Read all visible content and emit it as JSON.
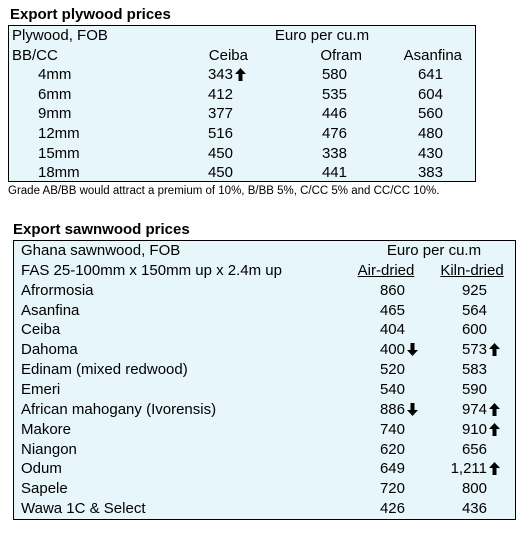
{
  "plywood": {
    "title": "Export plywood prices",
    "header": {
      "label1": "Plywood, FOB",
      "unit": "Euro per cu.m",
      "label2": "BB/CC",
      "columns": [
        "Ceiba",
        "Ofram",
        "Asanfina"
      ]
    },
    "rows": [
      {
        "label": "4mm",
        "values": [
          "343",
          "580",
          "641"
        ]
      },
      {
        "label": "6mm",
        "values": [
          "412",
          "535",
          "604"
        ]
      },
      {
        "label": "9mm",
        "values": [
          "377",
          "446",
          "560"
        ]
      },
      {
        "label": "12mm",
        "values": [
          "516",
          "476",
          "480"
        ]
      },
      {
        "label": "15mm",
        "values": [
          "450",
          "338",
          "430"
        ]
      },
      {
        "label": "18mm",
        "values": [
          "450",
          "441",
          "383"
        ]
      }
    ],
    "note": "Grade AB/BB would attract a premium of 10%, B/BB 5%, C/CC 5% and CC/CC 10%."
  },
  "sawnwood": {
    "title": "Export sawnwood prices",
    "header": {
      "label1": "Ghana sawnwood, FOB",
      "unit": "Euro per cu.m",
      "label2": "FAS 25-100mm x 150mm up x 2.4m up",
      "columns": [
        "Air-dried",
        "Kiln-dried"
      ]
    },
    "rows": [
      {
        "label": "Afrormosia",
        "values": [
          "860",
          "925"
        ]
      },
      {
        "label": "Asanfina",
        "values": [
          "465",
          "564"
        ]
      },
      {
        "label": "Ceiba",
        "values": [
          "404",
          "600"
        ]
      },
      {
        "label": "Dahoma",
        "values": [
          "400",
          "573"
        ]
      },
      {
        "label": "Edinam (mixed redwood)",
        "values": [
          "520",
          "583"
        ]
      },
      {
        "label": "Emeri",
        "values": [
          "540",
          "590"
        ]
      },
      {
        "label": "African mahogany (Ivorensis)",
        "values": [
          "886",
          "974"
        ]
      },
      {
        "label": "Makore",
        "values": [
          "740",
          "910"
        ]
      },
      {
        "label": "Niangon",
        "values": [
          "620",
          "656"
        ]
      },
      {
        "label": "Odum",
        "values": [
          "649",
          "1,211"
        ]
      },
      {
        "label": "Sapele",
        "values": [
          "720",
          "800"
        ]
      },
      {
        "label": "Wawa 1C & Select",
        "values": [
          "426",
          "436"
        ]
      }
    ]
  }
}
